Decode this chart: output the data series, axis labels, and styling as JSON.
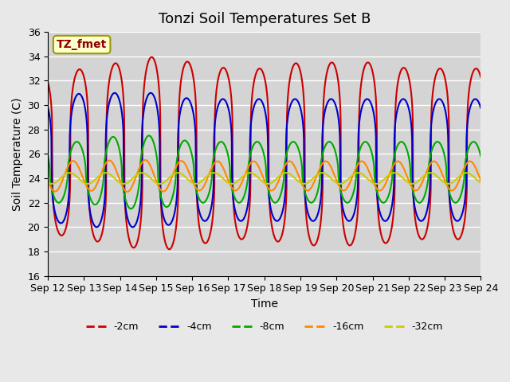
{
  "title": "Tonzi Soil Temperatures Set B",
  "xlabel": "Time",
  "ylabel": "Soil Temperature (C)",
  "ylim": [
    16,
    36
  ],
  "yticks": [
    16,
    18,
    20,
    22,
    24,
    26,
    28,
    30,
    32,
    34,
    36
  ],
  "xlim": [
    0,
    12
  ],
  "xtick_labels": [
    "Sep 12",
    "Sep 13",
    "Sep 14",
    "Sep 15",
    "Sep 16",
    "Sep 17",
    "Sep 18",
    "Sep 19",
    "Sep 20",
    "Sep 21",
    "Sep 22",
    "Sep 23",
    "Sep 24"
  ],
  "xtick_positions": [
    0,
    1,
    2,
    3,
    4,
    5,
    6,
    7,
    8,
    9,
    10,
    11,
    12
  ],
  "annotation_text": "TZ_fmet",
  "colors": {
    "-2cm": "#cc0000",
    "-4cm": "#0000cc",
    "-8cm": "#00aa00",
    "-16cm": "#ff8800",
    "-32cm": "#cccc00"
  },
  "legend_labels": [
    "-2cm",
    "-4cm",
    "-8cm",
    "-16cm",
    "-32cm"
  ],
  "background_color": "#e8e8e8",
  "plot_bg_color": "#d4d4d4",
  "grid_color": "#ffffff",
  "title_fontsize": 13,
  "axis_label_fontsize": 10,
  "tick_fontsize": 9,
  "linewidth": 1.5
}
